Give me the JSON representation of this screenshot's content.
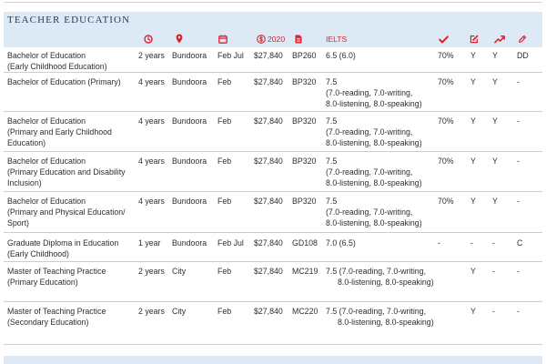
{
  "section": {
    "title": "TEACHER EDUCATION"
  },
  "columns": {
    "duration_icon": "clock-icon",
    "location_icon": "location-pin-icon",
    "intake_icon": "calendar-icon",
    "fee_icon": "dollar-circle-icon",
    "fee_year": "2020",
    "code_icon": "document-icon",
    "ielts_label": "IELTS",
    "check_icon": "checkmark-icon",
    "edit_icon": "edit-icon",
    "trend_icon": "trending-up-icon",
    "pencil_icon": "pencil-icon"
  },
  "colors": {
    "accent": "#d6232f",
    "band": "#dde9f5",
    "title": "#1f3b5c",
    "text": "#2e2e2e",
    "rule": "#cdcdcd"
  },
  "rows": [
    {
      "course": [
        "Bachelor of Education",
        "(Early Childhood Education)"
      ],
      "duration": "2 years",
      "location": "Bundoora",
      "intake": "Feb Jul",
      "fee": "$27,840",
      "code": "BP260",
      "ielts": [
        "6.5 (6.0)"
      ],
      "check": "70%",
      "edit": "Y",
      "trend": "Y",
      "pencil": "DD"
    },
    {
      "course": [
        "Bachelor of Education (Primary)"
      ],
      "duration": "4 years",
      "location": "Bundoora",
      "intake": "Feb",
      "fee": "$27,840",
      "code": "BP320",
      "ielts": [
        "7.5",
        "(7.0-reading, 7.0-writing,",
        "8.0-listening, 8.0-speaking)"
      ],
      "check": "70%",
      "edit": "Y",
      "trend": "Y",
      "pencil": "-"
    },
    {
      "course": [
        "Bachelor of Education",
        "(Primary and Early Childhood",
        "Education)"
      ],
      "duration": "4 years",
      "location": "Bundoora",
      "intake": "Feb",
      "fee": "$27,840",
      "code": "BP320",
      "ielts": [
        "7.5",
        "(7.0-reading, 7.0-writing,",
        "8.0-listening, 8.0-speaking)"
      ],
      "check": "70%",
      "edit": "Y",
      "trend": "Y",
      "pencil": "-"
    },
    {
      "course": [
        "Bachelor of Education",
        "(Primary Education and Disability",
        "Inclusion)"
      ],
      "duration": "4 years",
      "location": "Bundoora",
      "intake": "Feb",
      "fee": "$27,840",
      "code": "BP320",
      "ielts": [
        "7.5",
        "(7.0-reading, 7.0-writing,",
        "8.0-listening, 8.0-speaking)"
      ],
      "check": "70%",
      "edit": "Y",
      "trend": "Y",
      "pencil": "-"
    },
    {
      "course": [
        "Bachelor of Education",
        "(Primary and Physical Education/",
        "Sport)"
      ],
      "duration": "4 years",
      "location": "Bundoora",
      "intake": "Feb",
      "fee": "$27,840",
      "code": "BP320",
      "ielts": [
        "7.5",
        "(7.0-reading, 7.0-writing,",
        "8.0-listening, 8.0-speaking)"
      ],
      "check": "70%",
      "edit": "Y",
      "trend": "Y",
      "pencil": "-"
    },
    {
      "course": [
        "Graduate Diploma in Education",
        "(Early Childhood)"
      ],
      "duration": "1 year",
      "location": "Bundoora",
      "intake": "Feb Jul",
      "fee": "$27,840",
      "code": "GD108",
      "ielts": [
        "7.0 (6.5)"
      ],
      "check": "-",
      "edit": "-",
      "trend": "-",
      "pencil": "C"
    },
    {
      "course": [
        "Master of Teaching Practice",
        "(Primary Education)"
      ],
      "duration": "2 years",
      "location": "City",
      "intake": "Feb",
      "fee": "$27,840",
      "code": "MC219",
      "ielts": [
        "7.5 (7.0-reading, 7.0-writing,",
        "8.0-listening, 8.0-speaking)"
      ],
      "check": "",
      "edit": "Y",
      "trend": "-",
      "pencil": "-"
    },
    {
      "course": [
        "Master of Teaching Practice",
        "(Secondary Education)"
      ],
      "duration": "2 years",
      "location": "City",
      "intake": "Feb",
      "fee": "$27,840",
      "code": "MC220",
      "ielts": [
        "7.5 (7.0-reading, 7.0-writing,",
        "8.0-listening, 8.0-speaking)"
      ],
      "check": "",
      "edit": "Y",
      "trend": "-",
      "pencil": "-"
    }
  ]
}
